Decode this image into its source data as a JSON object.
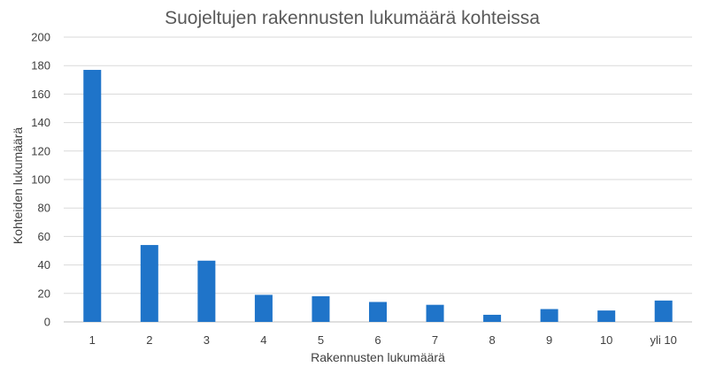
{
  "chart_data": {
    "type": "bar",
    "title": "Suojeltujen rakennusten lukumäärä kohteissa",
    "xlabel": "Rakennusten lukumäärä",
    "ylabel": "Kohteiden lukumäärä",
    "categories": [
      "1",
      "2",
      "3",
      "4",
      "5",
      "6",
      "7",
      "8",
      "9",
      "10",
      "yli 10"
    ],
    "values": [
      177,
      54,
      43,
      19,
      18,
      14,
      12,
      5,
      9,
      8,
      15
    ],
    "ylim": [
      0,
      200
    ],
    "yticks": [
      "0",
      "20",
      "40",
      "60",
      "80",
      "100",
      "120",
      "140",
      "160",
      "180",
      "200"
    ],
    "grid": true,
    "legend": "none",
    "bar_color": "#1f74c9"
  }
}
